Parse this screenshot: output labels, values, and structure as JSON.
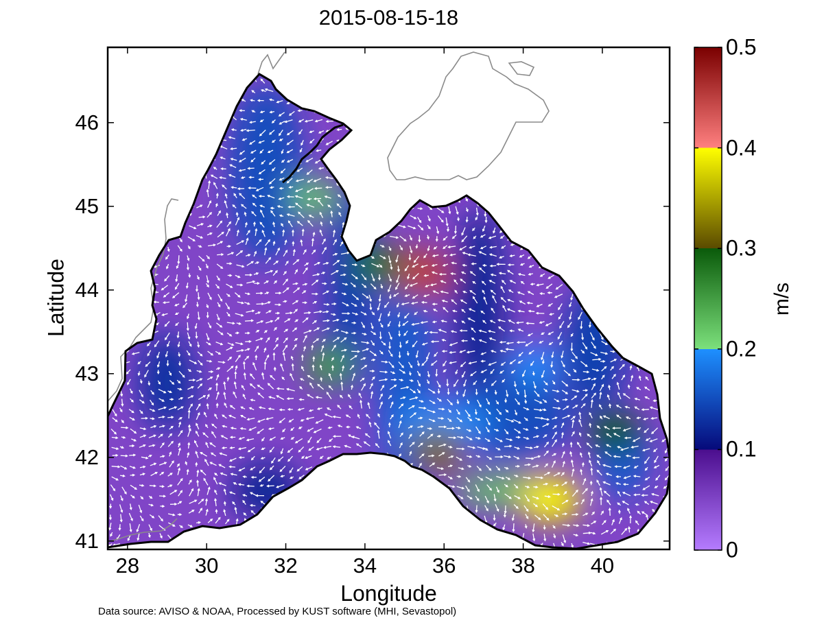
{
  "figure": {
    "title": "2015-08-15-18",
    "xlabel": "Longitude",
    "ylabel": "Latitude",
    "credit": "Data source: AVISO & NOAA, Processed by KUST software (MHI, Sevastopol)"
  },
  "map_data": {
    "type": "current-velocity-map",
    "region": "Black Sea",
    "lon_range": [
      27.5,
      41.7
    ],
    "lat_range": [
      40.9,
      46.9
    ],
    "lon_ticks": [
      {
        "value": 28,
        "label": "28"
      },
      {
        "value": 30,
        "label": "30"
      },
      {
        "value": 32,
        "label": "32"
      },
      {
        "value": 34,
        "label": "34"
      },
      {
        "value": 36,
        "label": "36"
      },
      {
        "value": 38,
        "label": "38"
      },
      {
        "value": 40,
        "label": "40"
      }
    ],
    "lat_ticks": [
      {
        "value": 41,
        "label": "41"
      },
      {
        "value": 42,
        "label": "42"
      },
      {
        "value": 43,
        "label": "43"
      },
      {
        "value": 44,
        "label": "44"
      },
      {
        "value": 45,
        "label": "45"
      },
      {
        "value": 46,
        "label": "46"
      }
    ],
    "speed_maxima": [
      {
        "lon": 35.4,
        "lat": 44.2,
        "speed": 0.45
      },
      {
        "lon": 38.7,
        "lat": 41.5,
        "speed": 0.4
      },
      {
        "lon": 35.8,
        "lat": 42.1,
        "speed": 0.32
      },
      {
        "lon": 40.3,
        "lat": 42.3,
        "speed": 0.3
      },
      {
        "lon": 32.7,
        "lat": 45.1,
        "speed": 0.22
      },
      {
        "lon": 34.3,
        "lat": 44.3,
        "speed": 0.28
      },
      {
        "lon": 33.1,
        "lat": 43.1,
        "speed": 0.25
      },
      {
        "lon": 38.3,
        "lat": 43.1,
        "speed": 0.2
      }
    ]
  },
  "colorbar": {
    "label": "m/s",
    "range": [
      0,
      0.5
    ],
    "ticks": [
      {
        "value": 0,
        "label": "0"
      },
      {
        "value": 0.1,
        "label": "0.1"
      },
      {
        "value": 0.2,
        "label": "0.2"
      },
      {
        "value": 0.3,
        "label": "0.3"
      },
      {
        "value": 0.4,
        "label": "0.4"
      },
      {
        "value": 0.5,
        "label": "0.5"
      }
    ],
    "bands": [
      {
        "from": 0.0,
        "to": 0.1,
        "color_low": "#b57cff",
        "color_high": "#4b0e8e"
      },
      {
        "from": 0.1,
        "to": 0.2,
        "color_low": "#060a7a",
        "color_high": "#1e90ff"
      },
      {
        "from": 0.2,
        "to": 0.3,
        "color_low": "#7ce07c",
        "color_high": "#0a5a0a"
      },
      {
        "from": 0.3,
        "to": 0.4,
        "color_low": "#5a4a00",
        "color_high": "#ffff00"
      },
      {
        "from": 0.4,
        "to": 0.5,
        "color_low": "#ff8080",
        "color_high": "#7a0000"
      }
    ]
  },
  "colors": {
    "shore": "#000000",
    "inland": "#8a8a8a",
    "vectors": "#ffffff"
  }
}
